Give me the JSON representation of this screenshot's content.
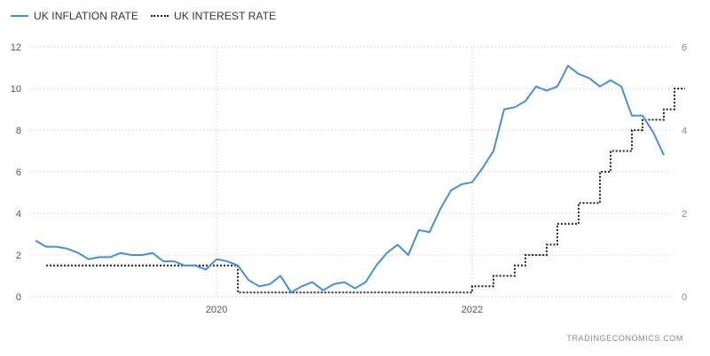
{
  "legend": {
    "inflation_label": "UK INFLATION RATE",
    "interest_label": "UK INTEREST RATE"
  },
  "source": "TRADINGECONOMICS.COM",
  "colors": {
    "inflation": "#4a8fd1",
    "interest": "#222222",
    "grid": "#d9d9d9"
  },
  "chart_data": {
    "type": "line",
    "x_ticks": [
      "2020",
      "2022"
    ],
    "y_left": {
      "ticks": [
        0,
        2,
        4,
        6,
        8,
        10,
        12
      ],
      "range": [
        0,
        12
      ]
    },
    "y_right": {
      "ticks": [
        0,
        2,
        4,
        6
      ],
      "range": [
        0,
        6
      ]
    },
    "grid": true,
    "legend_position": "top-left",
    "x_start": "2018-10",
    "series": [
      {
        "name": "UK INFLATION RATE",
        "axis": "left",
        "style": "solid",
        "values": [
          2.7,
          2.4,
          2.4,
          2.3,
          2.1,
          1.8,
          1.9,
          1.9,
          2.1,
          2.0,
          2.0,
          2.1,
          1.7,
          1.7,
          1.5,
          1.5,
          1.3,
          1.8,
          1.7,
          1.5,
          0.8,
          0.5,
          0.6,
          1.0,
          0.2,
          0.5,
          0.7,
          0.3,
          0.6,
          0.7,
          0.4,
          0.7,
          1.5,
          2.1,
          2.5,
          2.0,
          3.2,
          3.1,
          4.2,
          5.1,
          5.4,
          5.5,
          6.2,
          7.0,
          9.0,
          9.1,
          9.4,
          10.1,
          9.9,
          10.1,
          11.1,
          10.7,
          10.5,
          10.1,
          10.4,
          10.1,
          8.7,
          8.7,
          7.9,
          6.8
        ]
      },
      {
        "name": "UK INTEREST RATE",
        "axis": "right",
        "style": "dotted",
        "values": [
          0.75,
          0.75,
          0.75,
          0.75,
          0.75,
          0.75,
          0.75,
          0.75,
          0.75,
          0.75,
          0.75,
          0.75,
          0.75,
          0.75,
          0.75,
          0.75,
          0.75,
          0.75,
          0.1,
          0.1,
          0.1,
          0.1,
          0.1,
          0.1,
          0.1,
          0.1,
          0.1,
          0.1,
          0.1,
          0.1,
          0.1,
          0.1,
          0.1,
          0.1,
          0.1,
          0.1,
          0.1,
          0.1,
          0.1,
          0.1,
          0.25,
          0.25,
          0.5,
          0.5,
          0.75,
          1.0,
          1.0,
          1.25,
          1.75,
          1.75,
          2.25,
          2.25,
          3.0,
          3.5,
          3.5,
          4.0,
          4.25,
          4.25,
          4.5,
          5.0,
          5.0
        ]
      }
    ]
  }
}
